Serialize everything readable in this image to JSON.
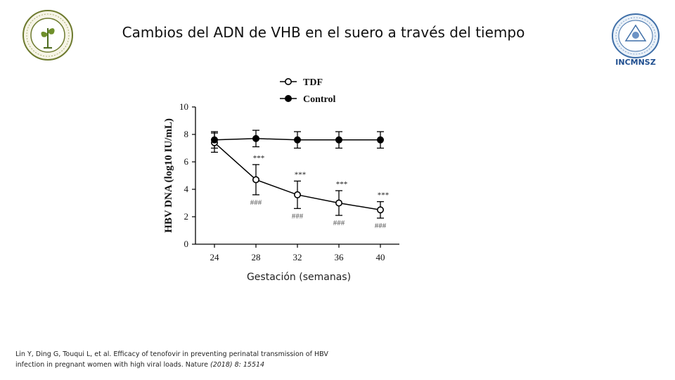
{
  "slide": {
    "title": "Cambios del ADN de VHB en el suero a través del tiempo",
    "right_logo_label": "INCMNSZ",
    "citation_line1": "Lin Y, Ding G, Touqui L, et al. Efficacy of tenofovir in preventing perinatal transmission of HBV",
    "citation_line2_plain": "infection in pregnant women with high viral loads. Nature ",
    "citation_line2_italic": "(2018) 8: 15514"
  },
  "chart_data": {
    "type": "line",
    "title": "",
    "xlabel": "Gestación (semanas)",
    "ylabel": "HBV DNA (log10 IU/mL)",
    "x": [
      24,
      28,
      32,
      36,
      40
    ],
    "xlim": [
      24,
      40
    ],
    "ylim": [
      0,
      10
    ],
    "yticks": [
      0,
      2,
      4,
      6,
      8,
      10
    ],
    "legend_position": "top-left",
    "grid": false,
    "series": [
      {
        "name": "TDF",
        "marker": "open-circle",
        "color": "#000000",
        "values": [
          7.4,
          4.7,
          3.6,
          3.0,
          2.5
        ],
        "error": [
          0.7,
          1.1,
          1.0,
          0.9,
          0.6
        ],
        "significance_above": [
          "",
          "***",
          "***",
          "***",
          "***"
        ],
        "significance_below": [
          "",
          "###",
          "###",
          "###",
          "###"
        ]
      },
      {
        "name": "Control",
        "marker": "filled-circle",
        "color": "#000000",
        "values": [
          7.6,
          7.7,
          7.6,
          7.6,
          7.6
        ],
        "error": [
          0.6,
          0.6,
          0.6,
          0.6,
          0.6
        ]
      }
    ]
  }
}
